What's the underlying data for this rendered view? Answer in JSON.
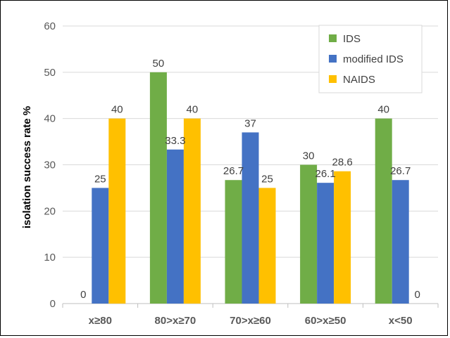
{
  "chart_data": {
    "type": "bar",
    "title": "",
    "xlabel": "",
    "ylabel": "isolation success rate %",
    "ylim": [
      0,
      60
    ],
    "yticks": [
      0,
      10,
      20,
      30,
      40,
      50,
      60
    ],
    "grid": true,
    "legend_position": "top-right",
    "categories": [
      "x≥80",
      "80>x≥70",
      "70>x≥60",
      "60>x≥50",
      "x<50"
    ],
    "series": [
      {
        "name": "IDS",
        "color": "#70AD47",
        "values": [
          0,
          50,
          26.7,
          30,
          40
        ],
        "labels": [
          "0",
          "50",
          "26.7",
          "30",
          "40"
        ]
      },
      {
        "name": "modified IDS",
        "color": "#4472C4",
        "values": [
          25,
          33.3,
          37,
          26.1,
          26.7
        ],
        "labels": [
          "25",
          "33.3",
          "37",
          "26.1",
          "26.7"
        ]
      },
      {
        "name": "NAIDS",
        "color": "#FFC000",
        "values": [
          40,
          40,
          25,
          28.6,
          0
        ],
        "labels": [
          "40",
          "40",
          "25",
          "28.6",
          "0"
        ]
      }
    ]
  }
}
